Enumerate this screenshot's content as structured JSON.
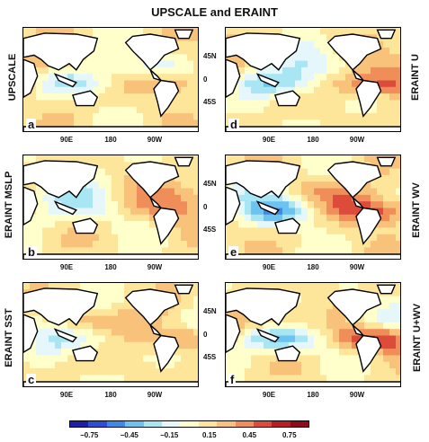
{
  "title": "UPSCALE and ERAINT",
  "row_labels_left": [
    "UPSCALE",
    "ERAINT MSLP",
    "ERAINT SST"
  ],
  "row_labels_right": [
    "ERAINT U",
    "ERAINT WV",
    "ERAINT U+WV"
  ],
  "panels": [
    {
      "letter": "a"
    },
    {
      "letter": "d"
    },
    {
      "letter": "b"
    },
    {
      "letter": "e"
    },
    {
      "letter": "c"
    },
    {
      "letter": "f"
    }
  ],
  "x_ticks": [
    "90E",
    "180",
    "90W"
  ],
  "y_ticks": [
    "45N",
    "0",
    "45S"
  ],
  "colorbar": {
    "colors": [
      "#1f1fa6",
      "#2e4fd2",
      "#3f8ae6",
      "#6cc3f0",
      "#a8e6f4",
      "#e6f7fb",
      "#ffffcc",
      "#fde59a",
      "#f9c27a",
      "#f08e5a",
      "#dd4c3a",
      "#b81e28",
      "#8f0d1b"
    ],
    "tick_labels": [
      "−0.75",
      "−0.45",
      "−0.15",
      "0.15",
      "0.45",
      "0.75"
    ]
  },
  "chart_data": {
    "type": "heatmap",
    "title": "UPSCALE and ERAINT",
    "x_ticks": [
      "90E",
      "180",
      "90W"
    ],
    "y_ticks": [
      "45N",
      "0",
      "45S"
    ],
    "colorbar_ticks": [
      -0.75,
      -0.45,
      -0.15,
      0.15,
      0.45,
      0.75
    ],
    "colorbar_range": [
      -0.9,
      0.9
    ],
    "panels": [
      "a",
      "b",
      "c",
      "d",
      "e",
      "f"
    ],
    "row_labels_left": [
      "UPSCALE",
      "ERAINT MSLP",
      "ERAINT SST"
    ],
    "row_labels_right": [
      "ERAINT U",
      "ERAINT WV",
      "ERAINT U+WV"
    ]
  }
}
